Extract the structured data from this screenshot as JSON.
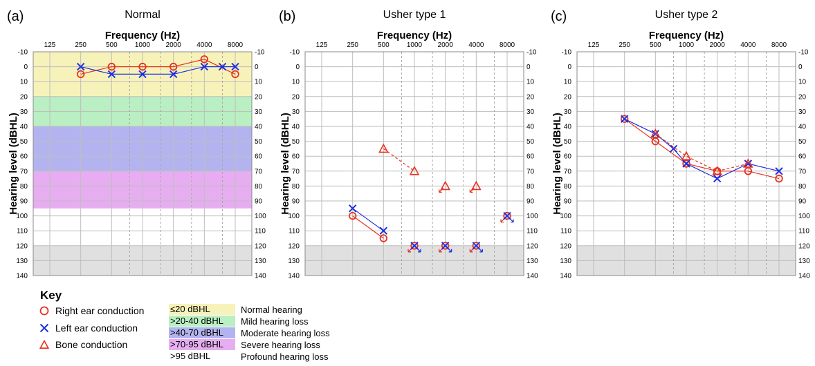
{
  "key": {
    "title": "Key",
    "symbols": [
      {
        "label": "Right ear conduction",
        "icon": "circle-icon",
        "color": "#e8321f"
      },
      {
        "label": "Left ear conduction",
        "icon": "cross-icon",
        "color": "#1f2fe0"
      },
      {
        "label": "Bone conduction",
        "icon": "triangle-icon",
        "color": "#e8321f"
      }
    ],
    "severity": [
      {
        "range": "≤20 dBHL",
        "desc": "Normal hearing",
        "color": "#f7f2b9"
      },
      {
        "range": ">20-40 dBHL",
        "desc": "Mild hearing loss",
        "color": "#b9efc2"
      },
      {
        "range": ">40-70 dBHL",
        "desc": "Moderate hearing loss",
        "color": "#b3b4ef"
      },
      {
        "range": ">70-95 dBHL",
        "desc": "Severe hearing loss",
        "color": "#e6aef0"
      },
      {
        "range": ">95 dBHL",
        "desc": "Profound hearing loss",
        "color": "#ffffff"
      }
    ]
  },
  "chart_data": [
    {
      "type": "line",
      "panel_label": "(a)",
      "title": "Normal",
      "xlabel": "Frequency (Hz)",
      "ylabel": "Hearing level (dBHL)",
      "x_ticks": [
        "125",
        "250",
        "500",
        "1000",
        "2000",
        "4000",
        "8000"
      ],
      "x_scale": "log2",
      "y_ticks": [
        -10,
        0,
        10,
        20,
        30,
        40,
        50,
        60,
        70,
        80,
        90,
        100,
        110,
        120,
        130,
        140
      ],
      "ylim": [
        -10,
        140
      ],
      "y_inverted": true,
      "shaded_bands": [
        {
          "from": -10,
          "to": 20,
          "color": "#f7f2b9"
        },
        {
          "from": 20,
          "to": 40,
          "color": "#b9efc2"
        },
        {
          "from": 40,
          "to": 70,
          "color": "#b3b4ef"
        },
        {
          "from": 70,
          "to": 95,
          "color": "#e6aef0"
        },
        {
          "from": 120,
          "to": 140,
          "color": "#e0e0e0"
        }
      ],
      "series": [
        {
          "name": "Right ear conduction",
          "marker": "circle",
          "color": "#e8321f",
          "connected": true,
          "points": [
            [
              250,
              5
            ],
            [
              500,
              0
            ],
            [
              1000,
              0
            ],
            [
              2000,
              0
            ],
            [
              4000,
              -5
            ],
            [
              8000,
              5
            ]
          ]
        },
        {
          "name": "Left ear conduction",
          "marker": "cross",
          "color": "#1f2fe0",
          "connected": true,
          "points": [
            [
              250,
              0
            ],
            [
              500,
              5
            ],
            [
              1000,
              5
            ],
            [
              2000,
              5
            ],
            [
              4000,
              0
            ],
            [
              6000,
              0
            ],
            [
              8000,
              0
            ]
          ]
        }
      ]
    },
    {
      "type": "line",
      "panel_label": "(b)",
      "title": "Usher type 1",
      "xlabel": "Frequency (Hz)",
      "ylabel": "Hearing level (dBHL)",
      "x_ticks": [
        "125",
        "250",
        "500",
        "1000",
        "2000",
        "4000",
        "8000"
      ],
      "x_scale": "log2",
      "y_ticks": [
        -10,
        0,
        10,
        20,
        30,
        40,
        50,
        60,
        70,
        80,
        90,
        100,
        110,
        120,
        130,
        140
      ],
      "ylim": [
        -10,
        140
      ],
      "y_inverted": true,
      "shaded_bands": [
        {
          "from": 120,
          "to": 140,
          "color": "#e0e0e0"
        }
      ],
      "series": [
        {
          "name": "Right ear conduction",
          "marker": "circle",
          "color": "#e8321f",
          "connected": true,
          "points": [
            [
              250,
              100
            ],
            [
              500,
              115
            ]
          ]
        },
        {
          "name": "Right ear conduction",
          "marker": "circle",
          "color": "#e8321f",
          "connected": false,
          "no_response": true,
          "points": [
            [
              1000,
              120
            ],
            [
              2000,
              120
            ],
            [
              4000,
              120
            ],
            [
              8000,
              100
            ]
          ]
        },
        {
          "name": "Left ear conduction",
          "marker": "cross",
          "color": "#1f2fe0",
          "connected": true,
          "points": [
            [
              250,
              95
            ],
            [
              500,
              110
            ]
          ]
        },
        {
          "name": "Left ear conduction",
          "marker": "cross",
          "color": "#1f2fe0",
          "connected": false,
          "no_response": true,
          "points": [
            [
              1000,
              120
            ],
            [
              2000,
              120
            ],
            [
              4000,
              120
            ],
            [
              8000,
              100
            ]
          ]
        },
        {
          "name": "Bone conduction",
          "marker": "triangle",
          "color": "#e8321f",
          "connected": true,
          "dashed": true,
          "points": [
            [
              500,
              55
            ],
            [
              1000,
              70
            ]
          ]
        },
        {
          "name": "Bone conduction",
          "marker": "triangle",
          "color": "#e8321f",
          "connected": false,
          "no_response": true,
          "points": [
            [
              2000,
              80
            ],
            [
              4000,
              80
            ]
          ]
        }
      ]
    },
    {
      "type": "line",
      "panel_label": "(c)",
      "title": "Usher type 2",
      "xlabel": "Frequency (Hz)",
      "ylabel": "Hearing level (dBHL)",
      "x_ticks": [
        "125",
        "250",
        "500",
        "1000",
        "2000",
        "4000",
        "8000"
      ],
      "x_scale": "log2",
      "y_ticks": [
        -10,
        0,
        10,
        20,
        30,
        40,
        50,
        60,
        70,
        80,
        90,
        100,
        110,
        120,
        130,
        140
      ],
      "ylim": [
        -10,
        140
      ],
      "y_inverted": true,
      "shaded_bands": [
        {
          "from": 120,
          "to": 140,
          "color": "#e0e0e0"
        }
      ],
      "series": [
        {
          "name": "Right ear conduction",
          "marker": "circle",
          "color": "#e8321f",
          "connected": true,
          "points": [
            [
              250,
              35
            ],
            [
              500,
              50
            ],
            [
              1000,
              65
            ],
            [
              2000,
              70
            ],
            [
              4000,
              70
            ],
            [
              8000,
              75
            ]
          ]
        },
        {
          "name": "Left ear conduction",
          "marker": "cross",
          "color": "#1f2fe0",
          "connected": true,
          "points": [
            [
              250,
              35
            ],
            [
              500,
              45
            ],
            [
              750,
              55
            ],
            [
              1000,
              65
            ],
            [
              2000,
              75
            ],
            [
              4000,
              65
            ],
            [
              8000,
              70
            ]
          ]
        },
        {
          "name": "Bone conduction",
          "marker": "triangle",
          "color": "#e8321f",
          "connected": true,
          "dashed": true,
          "points": [
            [
              500,
              45
            ],
            [
              1000,
              60
            ],
            [
              2000,
              70
            ],
            [
              4000,
              65
            ]
          ]
        }
      ]
    }
  ]
}
